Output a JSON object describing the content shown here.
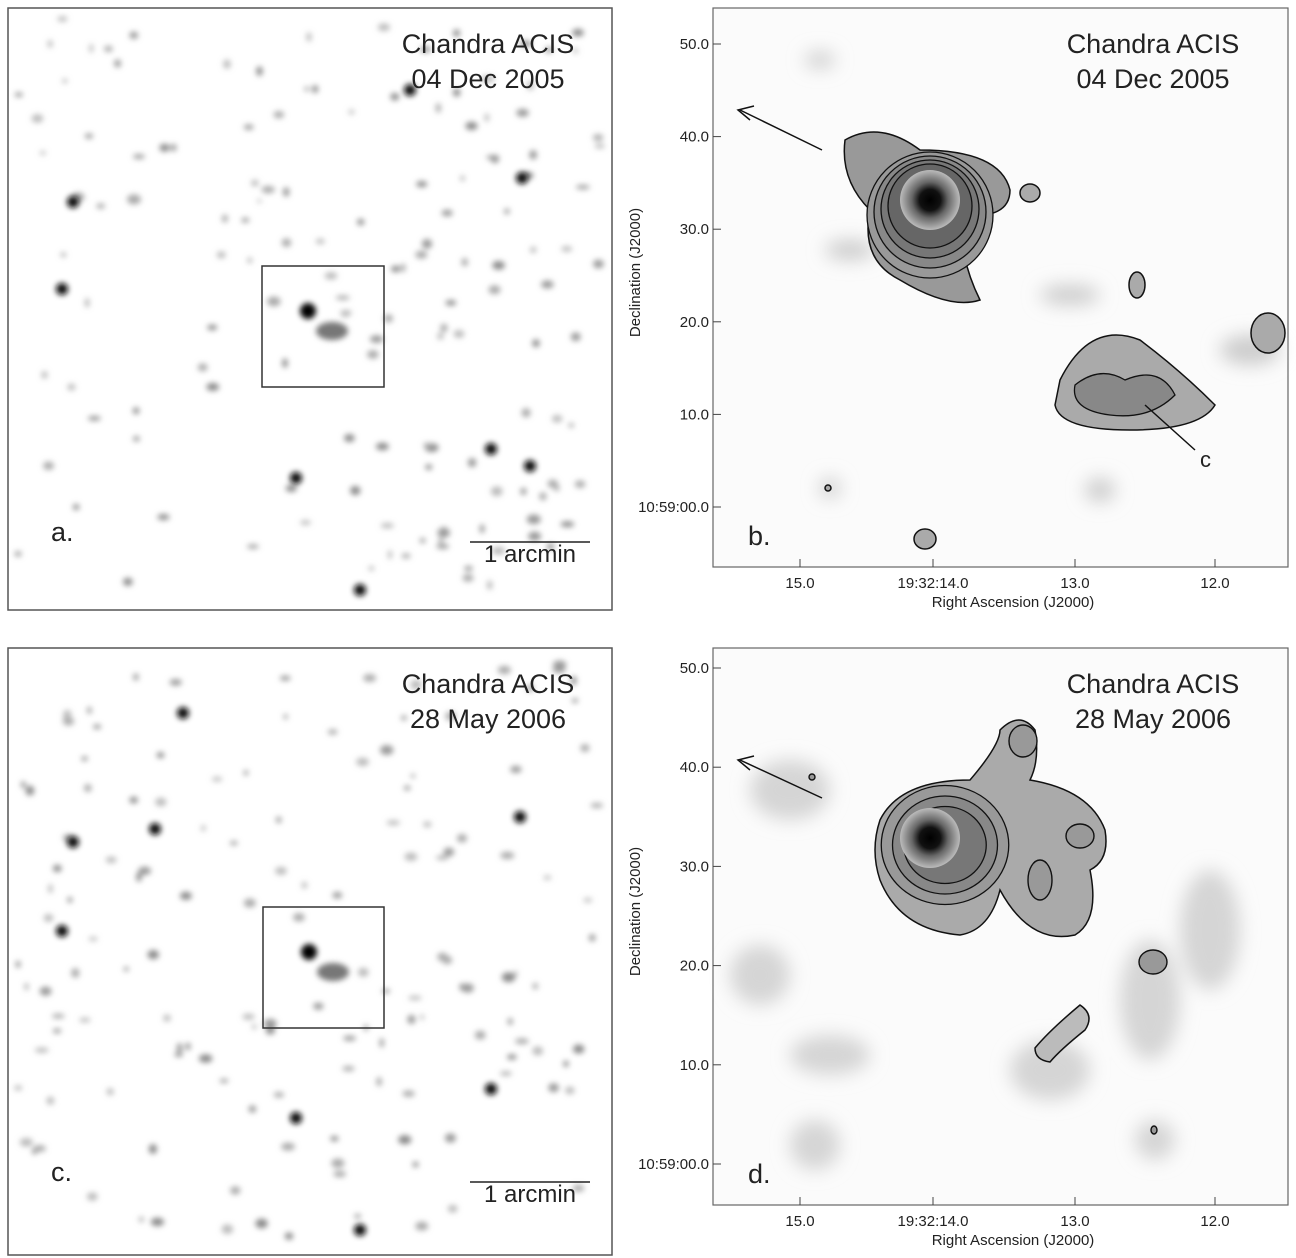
{
  "panels": [
    {
      "label": "a.",
      "title": [
        "Chandra ACIS",
        "04 Dec 2005"
      ],
      "scale_bar": "1  arcmin"
    },
    {
      "label": "b.",
      "title": [
        "Chandra ACIS",
        "04 Dec 2005"
      ],
      "annotation": "c",
      "y_axis_label": "Declination (J2000)",
      "x_axis_label": "Right Ascension (J2000)",
      "yticks": [
        "50.0",
        "40.0",
        "30.0",
        "20.0",
        "10.0",
        "10:59:00.0"
      ],
      "xticks": [
        "15.0",
        "19:32:14.0",
        "13.0",
        "12.0"
      ]
    },
    {
      "label": "c.",
      "title": [
        "Chandra ACIS",
        "28 May 2006"
      ],
      "scale_bar": "1  arcmin"
    },
    {
      "label": "d.",
      "title": [
        "Chandra ACIS",
        "28 May 2006"
      ],
      "y_axis_label": "Declination (J2000)",
      "x_axis_label": "Right Ascension (J2000)",
      "yticks": [
        "50.0",
        "40.0",
        "30.0",
        "20.0",
        "10.0",
        "10:59:00.0"
      ],
      "xticks": [
        "15.0",
        "19:32:14.0",
        "13.0",
        "12.0"
      ]
    }
  ]
}
